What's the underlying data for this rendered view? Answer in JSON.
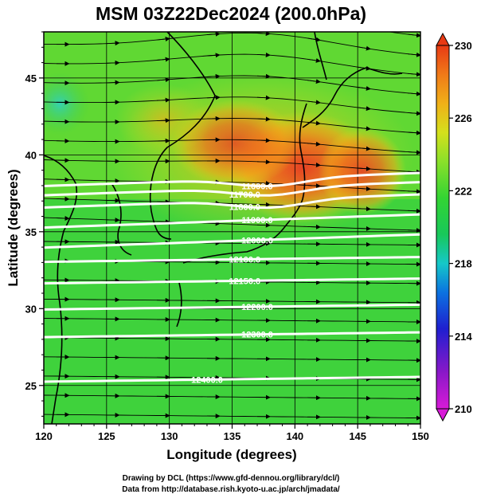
{
  "title": "MSM 03Z22Dec2024 (200.0hPa)",
  "xlabel": "Longitude (degrees)",
  "ylabel": "Latitude  (degrees)",
  "x_ticks": [
    "120",
    "125",
    "130",
    "135",
    "140",
    "145",
    "150"
  ],
  "y_ticks": [
    "25",
    "30",
    "35",
    "40",
    "45"
  ],
  "colorbar": {
    "ticks": [
      "230",
      "226",
      "222",
      "218",
      "214",
      "210"
    ],
    "min": 210,
    "max": 230,
    "colors": [
      "#d81bd8",
      "#8a18c8",
      "#1f1fd0",
      "#0b72e0",
      "#15c8c8",
      "#18c85a",
      "#33d433",
      "#8ae02a",
      "#d4e01c",
      "#f0b018",
      "#f07a18",
      "#e83a14"
    ]
  },
  "contours": [
    {
      "label": "11600.0",
      "lat": 38.4
    },
    {
      "label": "11700.0",
      "lat": 37.8
    },
    {
      "label": "11800.0",
      "lat": 37.0
    },
    {
      "label": "11900.0",
      "lat": 35.7
    },
    {
      "label": "12000.0",
      "lat": 34.4
    },
    {
      "label": "12100.0",
      "lat": 33.2
    },
    {
      "label": "12150.0",
      "lat": 31.8
    },
    {
      "label": "12200.0",
      "lat": 30.1
    },
    {
      "label": "12300.0",
      "lat": 28.3
    },
    {
      "label": "12400.0",
      "lat": 25.4
    }
  ],
  "credits": [
    "Drawing by DCL (https://www.gfd-dennou.org/library/dcl/)",
    "Data from http://database.rish.kyoto-u.ac.jp/arch/jmadata/"
  ]
}
